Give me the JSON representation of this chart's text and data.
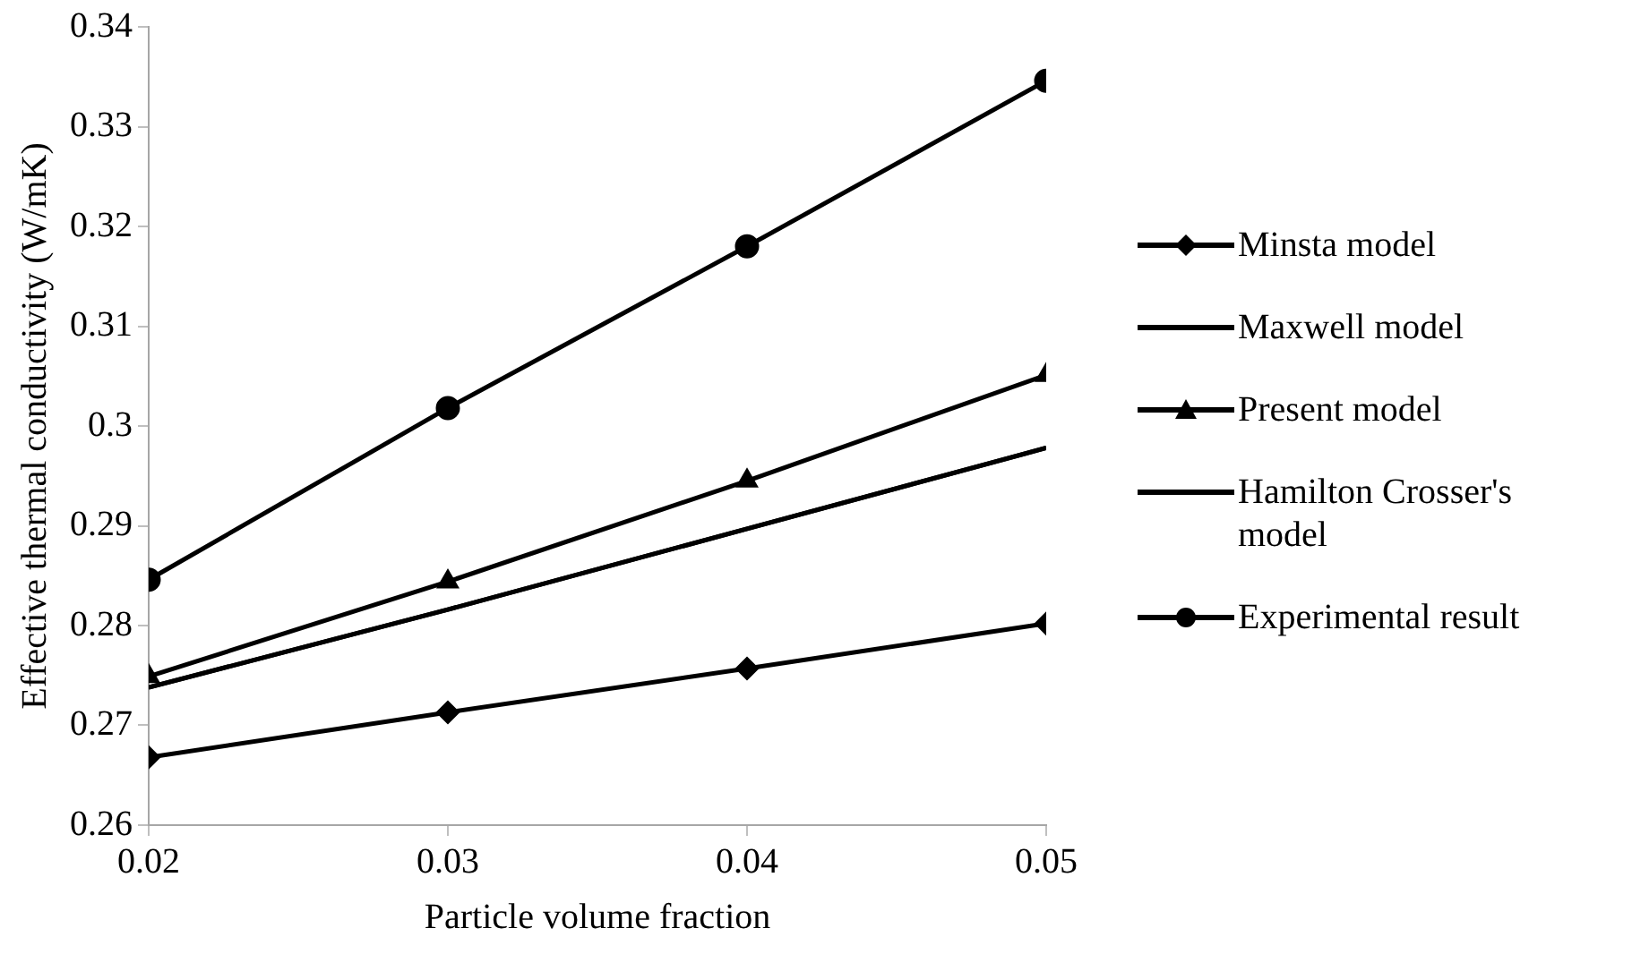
{
  "chart_data": {
    "type": "line",
    "xlabel": "Particle volume fraction",
    "ylabel": "Effective thermal conductivity (W/mK)",
    "x": [
      0.02,
      0.03,
      0.04,
      0.05
    ],
    "series": [
      {
        "name": "Minsta model",
        "color": "#000000",
        "marker": "diamond",
        "values": [
          0.2668,
          0.2713,
          0.2757,
          0.2802
        ]
      },
      {
        "name": "Maxwell model",
        "color": "#000000",
        "marker": "none",
        "values": [
          0.2738,
          0.2816,
          0.2897,
          0.2978
        ]
      },
      {
        "name": "Present model",
        "color": "#000000",
        "marker": "triangle",
        "values": [
          0.2749,
          0.2844,
          0.2945,
          0.3051
        ]
      },
      {
        "name": "Hamilton Crosser's model",
        "color": "#000000",
        "marker": "none",
        "values": [
          0.2738,
          0.2816,
          0.2897,
          0.2978
        ]
      },
      {
        "name": "Experimental result",
        "color": "#000000",
        "marker": "circle",
        "values": [
          0.2846,
          0.3018,
          0.318,
          0.3346
        ]
      }
    ],
    "xlim": [
      0.02,
      0.05
    ],
    "xticks": [
      0.02,
      0.03,
      0.04,
      0.05
    ],
    "ylim": [
      0.26,
      0.34
    ],
    "yticks": [
      0.26,
      0.27,
      0.28,
      0.29,
      0.3,
      0.31,
      0.32,
      0.33,
      0.34
    ],
    "grid": false,
    "legend": "right",
    "line_style": "solid"
  }
}
